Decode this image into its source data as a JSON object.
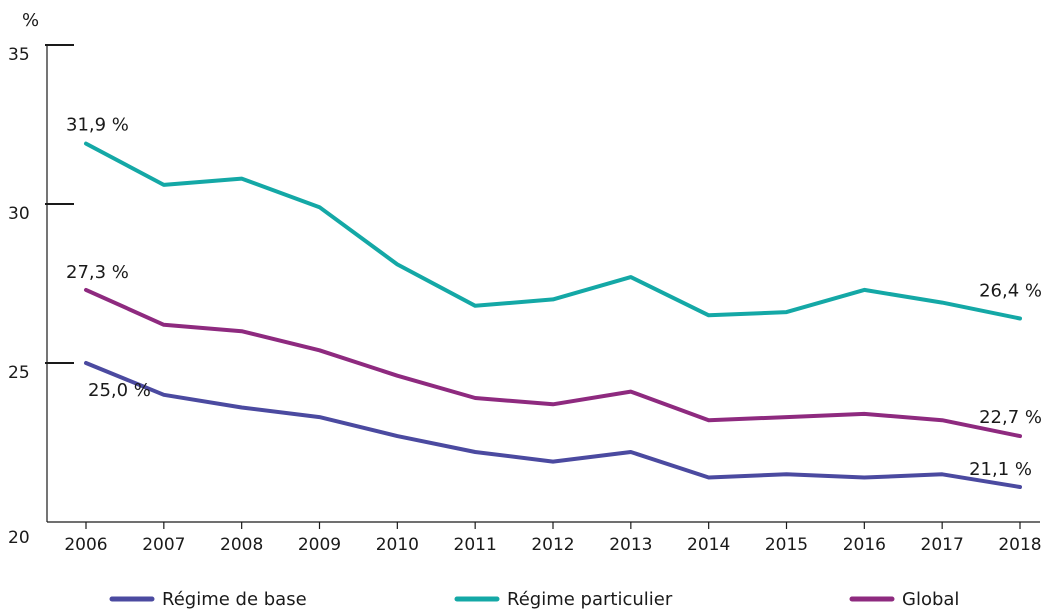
{
  "chart_data": {
    "type": "line",
    "title": "",
    "xlabel": "",
    "ylabel": "%",
    "ylim": [
      20,
      35
    ],
    "yticks": [
      20,
      25,
      30,
      35
    ],
    "ytick_labels": [
      "20",
      "25",
      "30",
      "35"
    ],
    "grid": false,
    "legend_position": "bottom",
    "categories": [
      "2006",
      "2007",
      "2008",
      "2009",
      "2010",
      "2011",
      "2012",
      "2013",
      "2014",
      "2015",
      "2016",
      "2017",
      "2018"
    ],
    "series": [
      {
        "name": "Régime de base",
        "color": "#4b4aa0",
        "values": [
          25.0,
          24.0,
          23.6,
          23.3,
          22.7,
          22.2,
          21.9,
          22.2,
          21.4,
          21.5,
          21.4,
          21.5,
          21.1
        ],
        "labels": [
          {
            "index": 0,
            "text": "25,0 %"
          },
          {
            "index": 12,
            "text": "21,1 %"
          }
        ]
      },
      {
        "name": "Régime particulier",
        "color": "#14a8a6",
        "values": [
          31.9,
          30.6,
          30.8,
          29.9,
          28.1,
          26.8,
          27.0,
          27.7,
          26.5,
          26.6,
          27.3,
          26.9,
          26.4
        ],
        "labels": [
          {
            "index": 0,
            "text": "31,9 %"
          },
          {
            "index": 12,
            "text": "26,4 %"
          }
        ]
      },
      {
        "name": "Global",
        "color": "#8e2a7f",
        "values": [
          27.3,
          26.2,
          26.0,
          25.4,
          24.6,
          23.9,
          23.7,
          24.1,
          23.2,
          23.3,
          23.4,
          23.2,
          22.7
        ],
        "labels": [
          {
            "index": 0,
            "text": "27,3 %"
          },
          {
            "index": 12,
            "text": "22,7 %"
          }
        ]
      }
    ]
  }
}
